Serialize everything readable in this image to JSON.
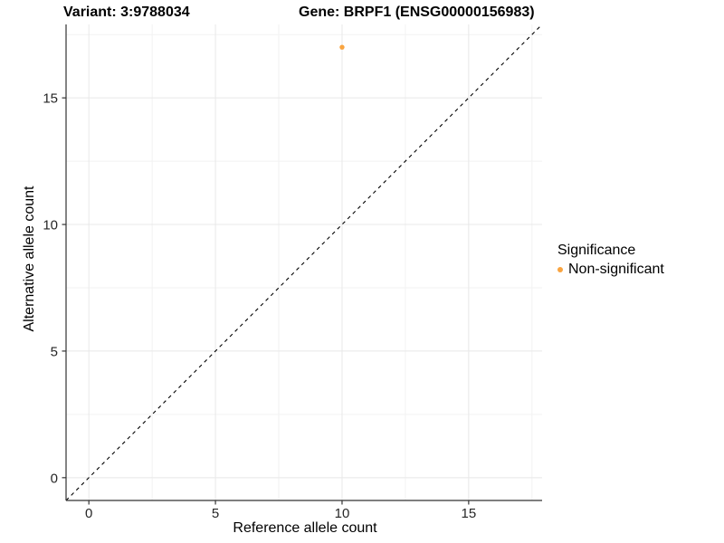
{
  "header": {
    "left_title": "Variant: 3:9788034",
    "right_title": "Gene: BRPF1 (ENSG00000156983)"
  },
  "chart_data": {
    "type": "scatter",
    "xlabel": "Reference allele count",
    "ylabel": "Alternative allele count",
    "xlim": [
      -0.9,
      17.9
    ],
    "ylim": [
      -0.9,
      17.9
    ],
    "x_ticks": [
      0,
      5,
      10,
      15
    ],
    "y_ticks": [
      0,
      5,
      10,
      15
    ],
    "x_minor_ticks": [
      2.5,
      7.5,
      12.5,
      17.5
    ],
    "y_minor_ticks": [
      2.5,
      7.5,
      12.5,
      17.5
    ],
    "grid": "major+minor",
    "series": [
      {
        "name": "Non-significant",
        "color": "#F9A440",
        "points": [
          {
            "x": 10,
            "y": 17
          }
        ]
      }
    ],
    "reference_line": {
      "type": "identity",
      "slope": 1,
      "intercept": 0,
      "style": "dashed",
      "color": "#000000"
    },
    "legend": {
      "title": "Significance",
      "position": "right",
      "items": [
        {
          "label": "Non-significant",
          "color": "#F9A440"
        }
      ]
    }
  },
  "colors": {
    "background": "#FFFFFF",
    "grid_major": "#E8E8E8",
    "grid_minor": "#F2F2F2",
    "axis_line": "#333333",
    "tick_mark": "#333333",
    "tick_label": "#262626",
    "point": "#F9A440"
  }
}
